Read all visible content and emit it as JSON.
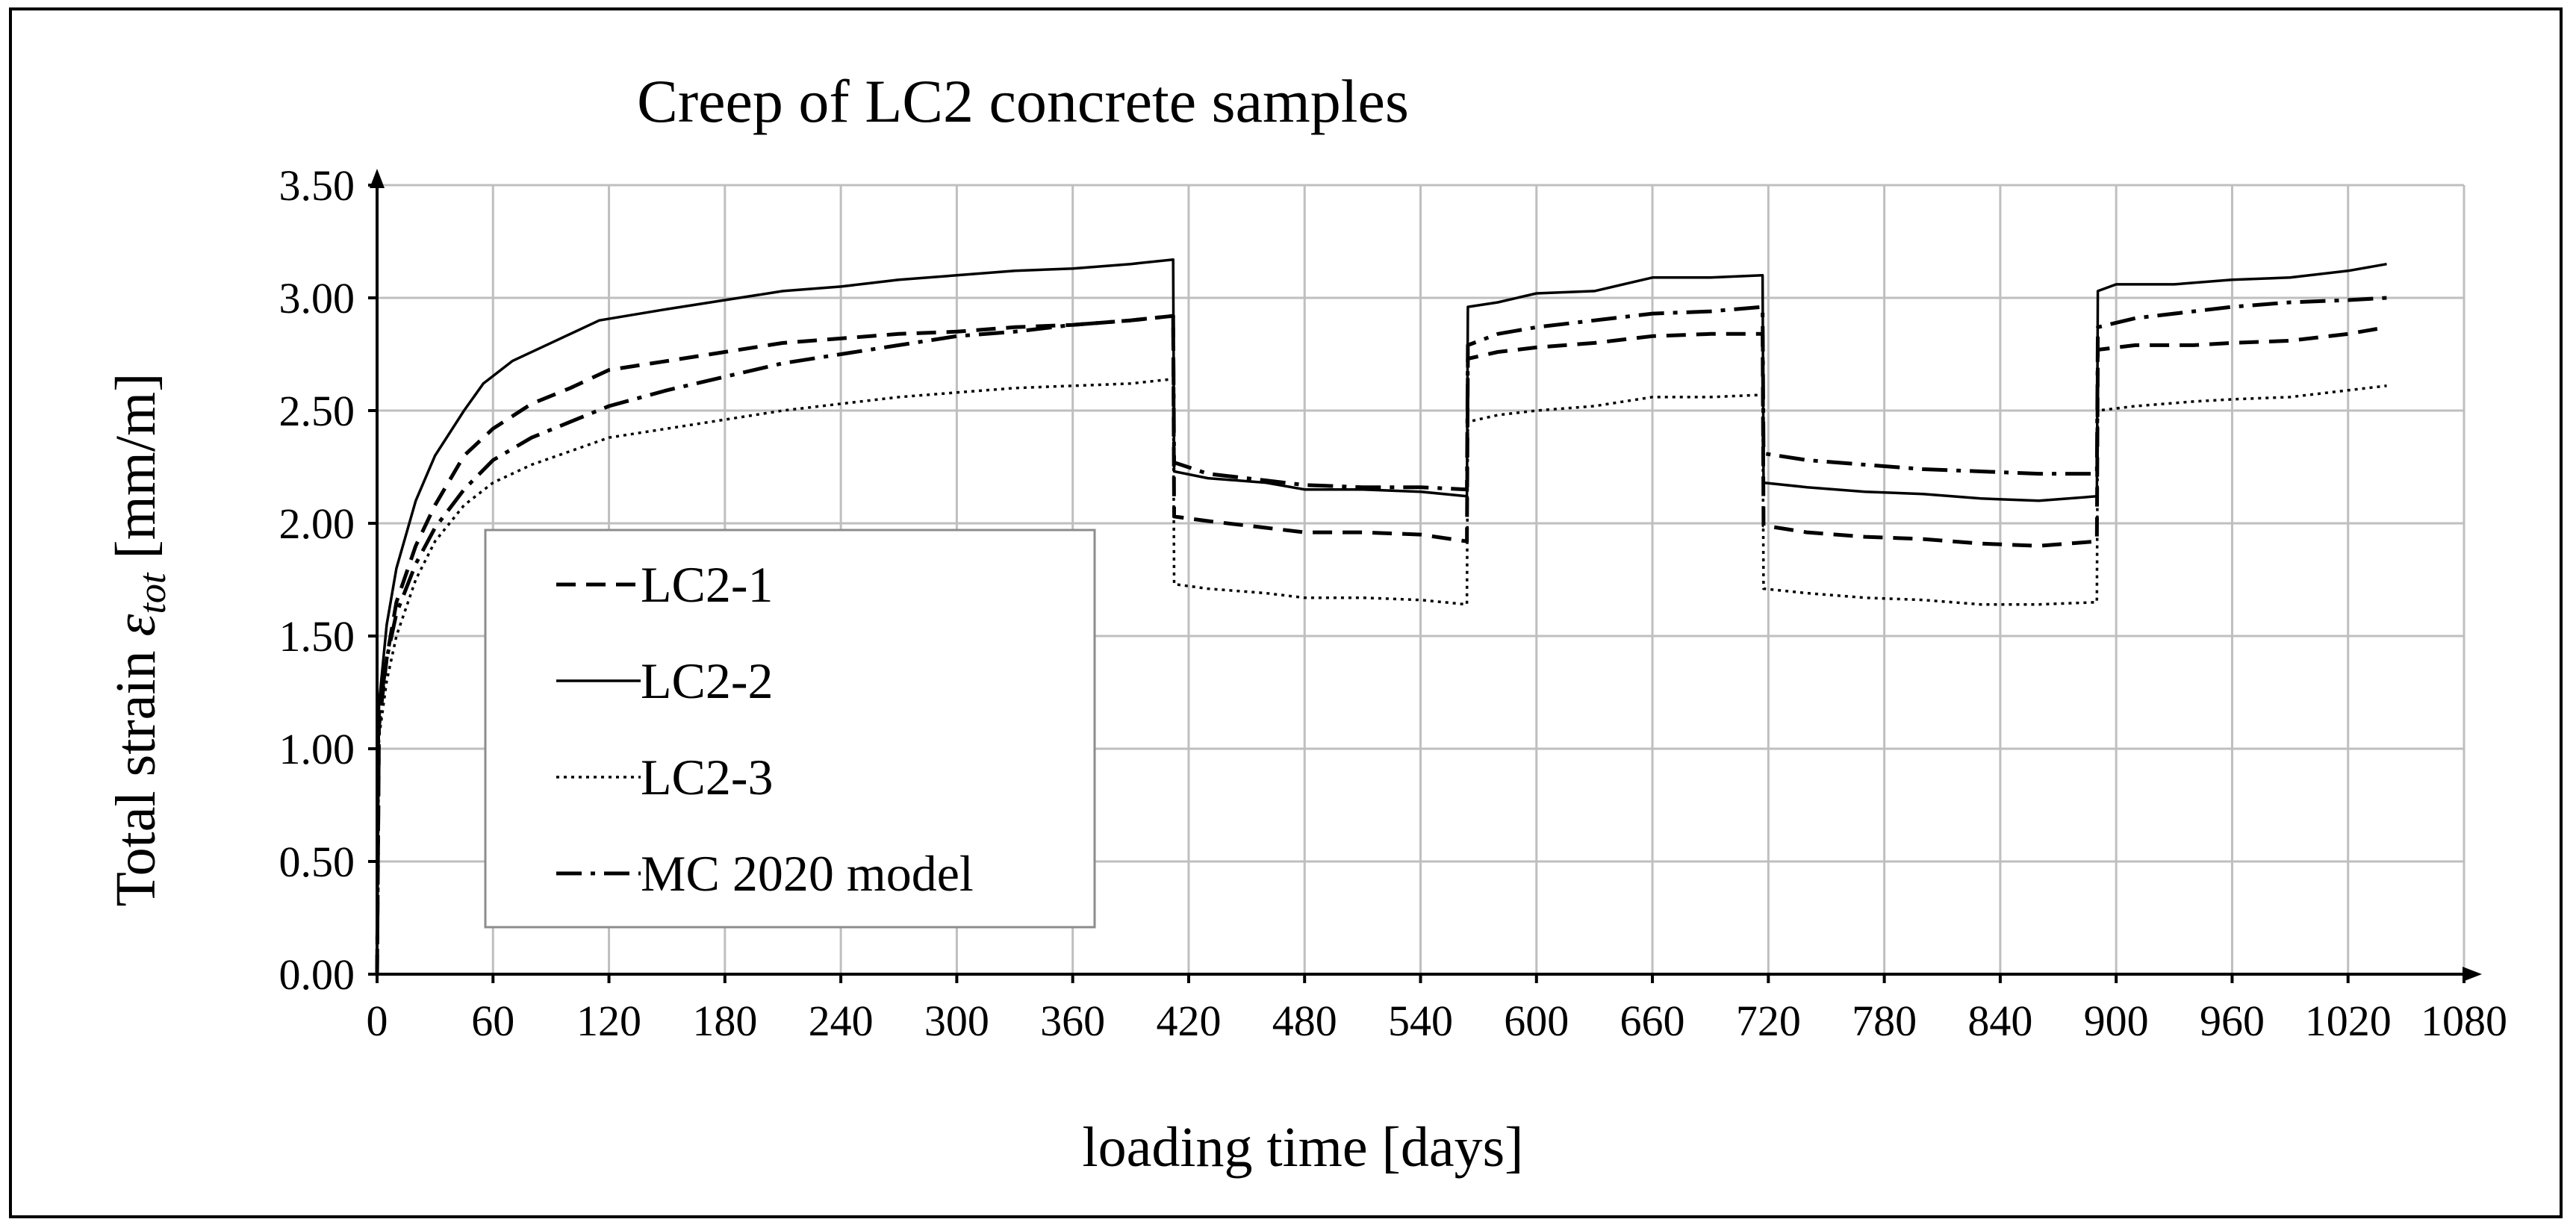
{
  "chart_data": {
    "type": "line",
    "title": "Creep of LC2 concrete samples",
    "xlabel": "loading time [days]",
    "ylabel_main": "Total strain ",
    "ylabel_symbol": "ε",
    "ylabel_subscript": "tot",
    "ylabel_unit": " [mm/m]",
    "xlim": [
      0,
      1080
    ],
    "ylim": [
      0,
      3.5
    ],
    "grid": true,
    "legend_position": "left-center",
    "x_ticks": [
      "0",
      "60",
      "120",
      "180",
      "240",
      "300",
      "360",
      "420",
      "480",
      "540",
      "600",
      "660",
      "720",
      "780",
      "840",
      "900",
      "960",
      "1020",
      "1080"
    ],
    "y_ticks": [
      "0.00",
      "0.50",
      "1.00",
      "1.50",
      "2.00",
      "2.50",
      "3.00",
      "3.50"
    ],
    "series": [
      {
        "name": "LC2-1",
        "style": "dashed",
        "points": [
          [
            0,
            0
          ],
          [
            1,
            1.1
          ],
          [
            5,
            1.4
          ],
          [
            10,
            1.65
          ],
          [
            20,
            1.9
          ],
          [
            30,
            2.08
          ],
          [
            45,
            2.3
          ],
          [
            60,
            2.42
          ],
          [
            80,
            2.53
          ],
          [
            100,
            2.6
          ],
          [
            120,
            2.68
          ],
          [
            150,
            2.72
          ],
          [
            180,
            2.76
          ],
          [
            210,
            2.8
          ],
          [
            240,
            2.82
          ],
          [
            270,
            2.84
          ],
          [
            300,
            2.85
          ],
          [
            330,
            2.87
          ],
          [
            360,
            2.88
          ],
          [
            390,
            2.9
          ],
          [
            412,
            2.92
          ],
          [
            412.5,
            2.03
          ],
          [
            430,
            2.01
          ],
          [
            460,
            1.98
          ],
          [
            480,
            1.96
          ],
          [
            510,
            1.96
          ],
          [
            540,
            1.95
          ],
          [
            564,
            1.92
          ],
          [
            564.5,
            2.73
          ],
          [
            580,
            2.76
          ],
          [
            600,
            2.78
          ],
          [
            630,
            2.8
          ],
          [
            660,
            2.83
          ],
          [
            690,
            2.84
          ],
          [
            717,
            2.84
          ],
          [
            717.5,
            1.99
          ],
          [
            740,
            1.96
          ],
          [
            770,
            1.94
          ],
          [
            800,
            1.93
          ],
          [
            830,
            1.91
          ],
          [
            860,
            1.9
          ],
          [
            890,
            1.92
          ],
          [
            890.5,
            2.77
          ],
          [
            910,
            2.79
          ],
          [
            940,
            2.79
          ],
          [
            960,
            2.8
          ],
          [
            990,
            2.81
          ],
          [
            1020,
            2.84
          ],
          [
            1040,
            2.87
          ]
        ]
      },
      {
        "name": "LC2-2",
        "style": "solid",
        "points": [
          [
            0,
            0
          ],
          [
            1,
            1.2
          ],
          [
            5,
            1.55
          ],
          [
            10,
            1.8
          ],
          [
            20,
            2.1
          ],
          [
            30,
            2.3
          ],
          [
            45,
            2.5
          ],
          [
            55,
            2.62
          ],
          [
            70,
            2.72
          ],
          [
            90,
            2.8
          ],
          [
            115,
            2.9
          ],
          [
            150,
            2.95
          ],
          [
            180,
            2.99
          ],
          [
            210,
            3.03
          ],
          [
            240,
            3.05
          ],
          [
            270,
            3.08
          ],
          [
            300,
            3.1
          ],
          [
            330,
            3.12
          ],
          [
            360,
            3.13
          ],
          [
            390,
            3.15
          ],
          [
            412,
            3.17
          ],
          [
            412.5,
            2.23
          ],
          [
            430,
            2.2
          ],
          [
            460,
            2.18
          ],
          [
            480,
            2.15
          ],
          [
            510,
            2.15
          ],
          [
            540,
            2.14
          ],
          [
            564,
            2.12
          ],
          [
            564.5,
            2.96
          ],
          [
            580,
            2.98
          ],
          [
            600,
            3.02
          ],
          [
            630,
            3.03
          ],
          [
            660,
            3.09
          ],
          [
            690,
            3.09
          ],
          [
            717,
            3.1
          ],
          [
            717.5,
            2.18
          ],
          [
            740,
            2.16
          ],
          [
            770,
            2.14
          ],
          [
            800,
            2.13
          ],
          [
            830,
            2.11
          ],
          [
            860,
            2.1
          ],
          [
            890,
            2.12
          ],
          [
            890.5,
            3.03
          ],
          [
            900,
            3.06
          ],
          [
            930,
            3.06
          ],
          [
            960,
            3.08
          ],
          [
            990,
            3.09
          ],
          [
            1020,
            3.12
          ],
          [
            1040,
            3.15
          ]
        ]
      },
      {
        "name": "LC2-3",
        "style": "dotted",
        "points": [
          [
            0,
            0
          ],
          [
            1,
            1.05
          ],
          [
            5,
            1.3
          ],
          [
            10,
            1.5
          ],
          [
            20,
            1.75
          ],
          [
            30,
            1.92
          ],
          [
            45,
            2.08
          ],
          [
            60,
            2.18
          ],
          [
            80,
            2.26
          ],
          [
            100,
            2.32
          ],
          [
            120,
            2.38
          ],
          [
            150,
            2.42
          ],
          [
            180,
            2.46
          ],
          [
            210,
            2.5
          ],
          [
            240,
            2.53
          ],
          [
            270,
            2.56
          ],
          [
            300,
            2.58
          ],
          [
            330,
            2.6
          ],
          [
            360,
            2.61
          ],
          [
            390,
            2.62
          ],
          [
            412,
            2.64
          ],
          [
            412.5,
            1.73
          ],
          [
            430,
            1.71
          ],
          [
            460,
            1.69
          ],
          [
            480,
            1.67
          ],
          [
            510,
            1.67
          ],
          [
            540,
            1.66
          ],
          [
            564,
            1.64
          ],
          [
            564.5,
            2.45
          ],
          [
            580,
            2.48
          ],
          [
            600,
            2.5
          ],
          [
            630,
            2.52
          ],
          [
            660,
            2.56
          ],
          [
            690,
            2.56
          ],
          [
            717,
            2.57
          ],
          [
            717.5,
            1.71
          ],
          [
            740,
            1.69
          ],
          [
            770,
            1.67
          ],
          [
            800,
            1.66
          ],
          [
            830,
            1.64
          ],
          [
            860,
            1.64
          ],
          [
            890,
            1.65
          ],
          [
            890.5,
            2.5
          ],
          [
            910,
            2.52
          ],
          [
            940,
            2.54
          ],
          [
            960,
            2.55
          ],
          [
            990,
            2.56
          ],
          [
            1020,
            2.59
          ],
          [
            1040,
            2.61
          ]
        ]
      },
      {
        "name": "MC 2020 model",
        "style": "dash-dot",
        "points": [
          [
            0,
            0
          ],
          [
            1,
            1.15
          ],
          [
            5,
            1.4
          ],
          [
            10,
            1.6
          ],
          [
            20,
            1.82
          ],
          [
            30,
            1.98
          ],
          [
            45,
            2.15
          ],
          [
            60,
            2.28
          ],
          [
            80,
            2.38
          ],
          [
            100,
            2.45
          ],
          [
            120,
            2.52
          ],
          [
            150,
            2.59
          ],
          [
            180,
            2.65
          ],
          [
            210,
            2.71
          ],
          [
            240,
            2.75
          ],
          [
            270,
            2.79
          ],
          [
            300,
            2.83
          ],
          [
            330,
            2.85
          ],
          [
            360,
            2.88
          ],
          [
            390,
            2.9
          ],
          [
            412,
            2.92
          ],
          [
            412.5,
            2.27
          ],
          [
            430,
            2.22
          ],
          [
            460,
            2.19
          ],
          [
            480,
            2.17
          ],
          [
            510,
            2.16
          ],
          [
            540,
            2.16
          ],
          [
            564,
            2.15
          ],
          [
            564.5,
            2.79
          ],
          [
            580,
            2.84
          ],
          [
            600,
            2.87
          ],
          [
            630,
            2.9
          ],
          [
            660,
            2.93
          ],
          [
            690,
            2.94
          ],
          [
            717,
            2.96
          ],
          [
            717.5,
            2.31
          ],
          [
            740,
            2.28
          ],
          [
            770,
            2.26
          ],
          [
            800,
            2.24
          ],
          [
            830,
            2.23
          ],
          [
            860,
            2.22
          ],
          [
            890,
            2.22
          ],
          [
            890.5,
            2.87
          ],
          [
            910,
            2.91
          ],
          [
            940,
            2.94
          ],
          [
            960,
            2.96
          ],
          [
            990,
            2.98
          ],
          [
            1020,
            2.99
          ],
          [
            1040,
            3.0
          ]
        ]
      }
    ]
  }
}
